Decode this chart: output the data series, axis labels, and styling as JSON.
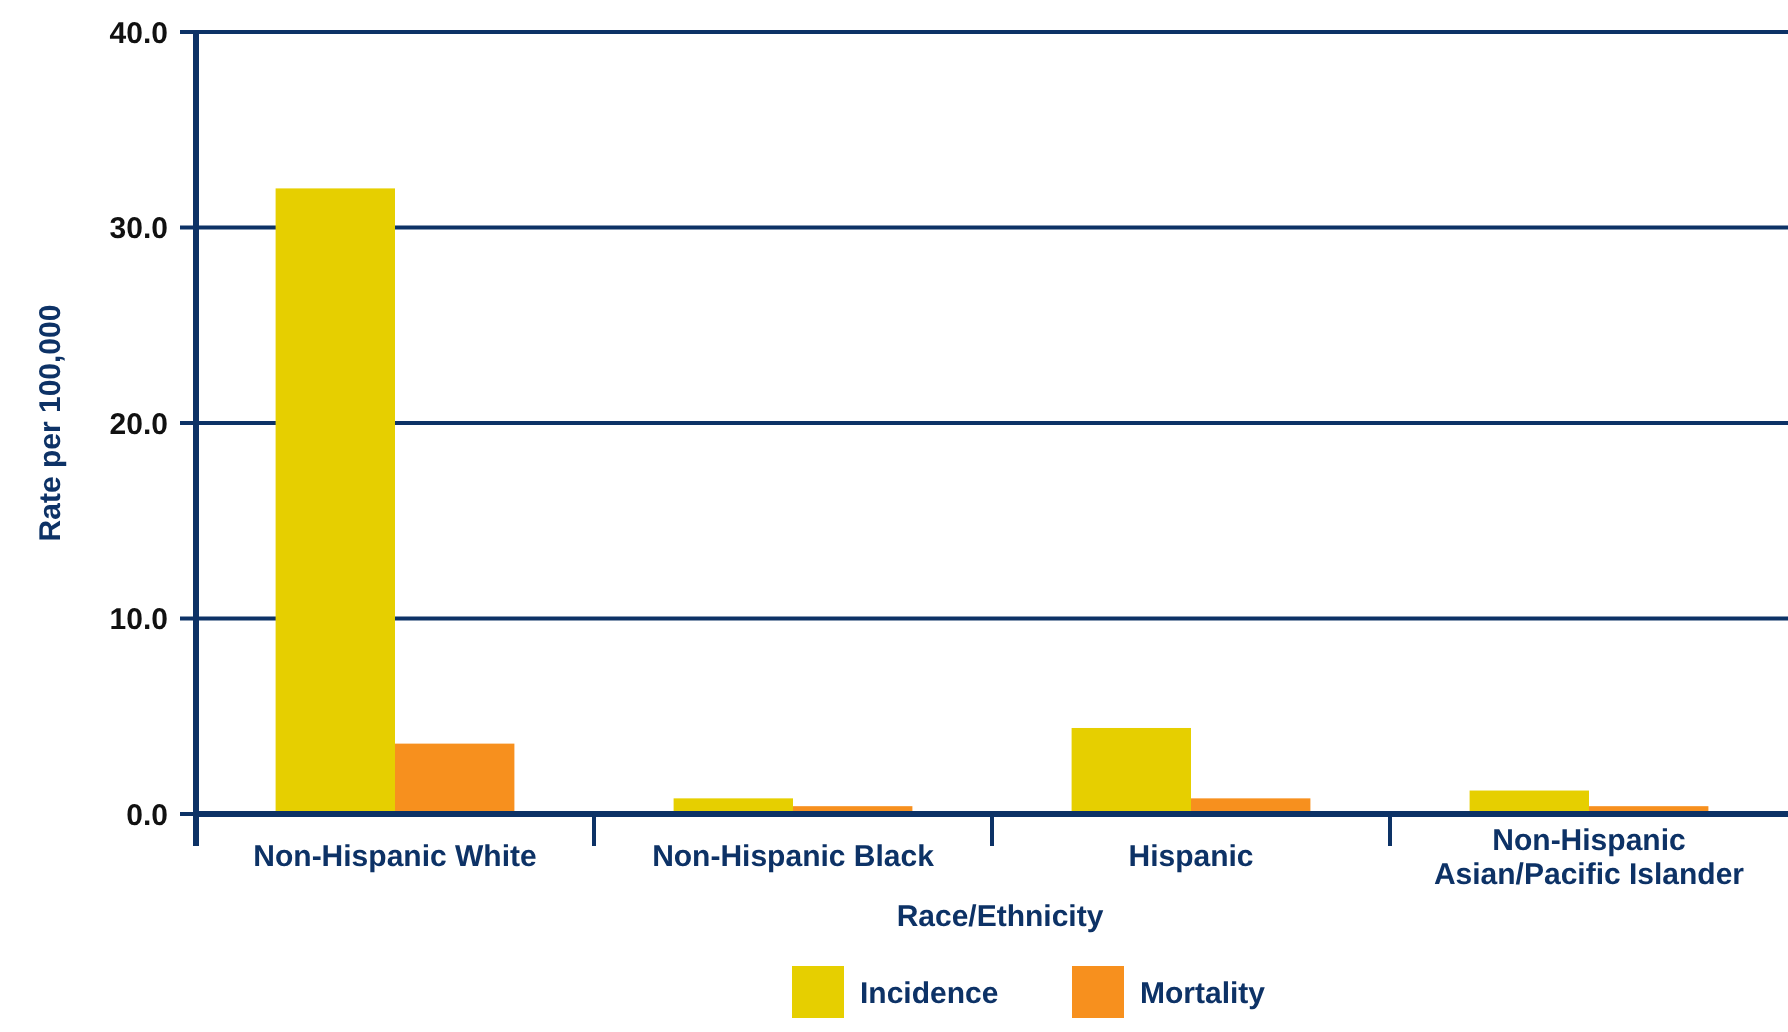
{
  "chart_data": {
    "type": "bar",
    "xlabel": "Race/Ethnicity",
    "ylabel": "Rate per 100,000",
    "categories": [
      "Non-Hispanic White",
      "Non-Hispanic Black",
      "Hispanic",
      "Non-Hispanic Asian/Pacific Islander"
    ],
    "series": [
      {
        "name": "Incidence",
        "color": "#e6cf00",
        "values": [
          32.0,
          0.8,
          4.4,
          1.2
        ]
      },
      {
        "name": "Mortality",
        "color": "#f7901e",
        "values": [
          3.6,
          0.4,
          0.8,
          0.4
        ]
      }
    ],
    "ylim": [
      0,
      40
    ],
    "yticks": [
      {
        "value": 0,
        "label": "0.0"
      },
      {
        "value": 10,
        "label": "10.0"
      },
      {
        "value": 20,
        "label": "20.0"
      },
      {
        "value": 30,
        "label": "30.0"
      },
      {
        "value": 40,
        "label": "40.0"
      }
    ],
    "grid": "y",
    "legend": "bottom"
  }
}
